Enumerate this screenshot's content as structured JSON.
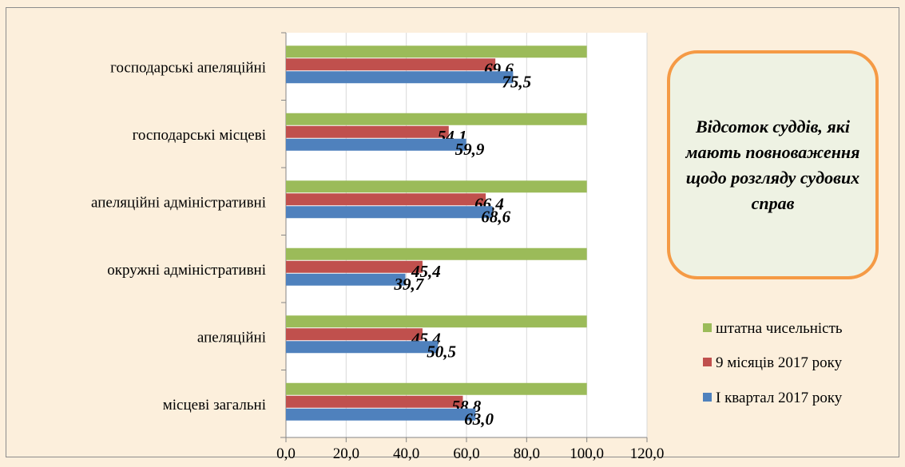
{
  "chart_data": {
    "type": "bar",
    "orientation": "horizontal",
    "title": "Відсоток суддів, які мають повноваження щодо розгляду судових справ",
    "categories": [
      "місцеві загальні",
      "апеляційні",
      "окружні адміністративні",
      "апеляційні адміністративні",
      "господарські місцеві",
      "господарські апеляційні"
    ],
    "series": [
      {
        "name": "I квартал 2017 року",
        "color": "#4f81bd",
        "values": [
          63.0,
          50.5,
          39.7,
          68.6,
          59.9,
          75.5
        ],
        "labels": [
          "63,0",
          "50,5",
          "39,7",
          "68,6",
          "59,9",
          "75,5"
        ]
      },
      {
        "name": "9 місяців 2017 року",
        "color": "#c0504d",
        "values": [
          58.8,
          45.4,
          45.4,
          66.4,
          54.1,
          69.6
        ],
        "labels": [
          "58,8",
          "45,4",
          "45,4",
          "66,4",
          "54,1",
          "69,6"
        ]
      },
      {
        "name": "штатна чисельність",
        "color": "#9bbb59",
        "values": [
          100,
          100,
          100,
          100,
          100,
          100
        ],
        "labels": [
          "",
          "",
          "",
          "",
          "",
          ""
        ]
      }
    ],
    "xlim": [
      0,
      120
    ],
    "ticks": [
      0,
      20,
      40,
      60,
      80,
      100,
      120
    ],
    "tick_labels": [
      "0,0",
      "20,0",
      "40,0",
      "60,0",
      "80,0",
      "100,0",
      "120,0"
    ],
    "legend": {
      "position": "right",
      "order": [
        "штатна чисельність",
        "9 місяців 2017 року",
        "I квартал 2017 року"
      ]
    },
    "grid": true
  }
}
